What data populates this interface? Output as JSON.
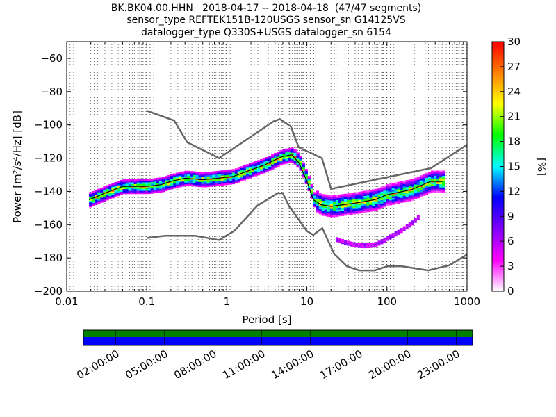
{
  "chart_data": [
    {
      "type": "heatmap",
      "title_lines": [
        "BK.BK04.00.HHN   2018-04-17 -- 2018-04-18  (47/47 segments)",
        "sensor_type REFTEK151B-120USGS sensor_sn G14125VS",
        "datalogger_type Q330S+USGS datalogger_sn 6154"
      ],
      "xlabel": "Period [s]",
      "ylabel": "Power [m²/s⁴/Hz] [dB]",
      "x_scale": "log",
      "xlim": [
        0.01,
        1000
      ],
      "ylim": [
        -200,
        -50
      ],
      "xticks": [
        0.01,
        0.1,
        1,
        10,
        100,
        1000
      ],
      "xtick_labels": [
        "0.01",
        "0.1",
        "1",
        "10",
        "100",
        "1000"
      ],
      "yticks": [
        -200,
        -180,
        -160,
        -140,
        -120,
        -100,
        -80,
        -60
      ],
      "ytick_labels": [
        "−200",
        "−180",
        "−160",
        "−140",
        "−120",
        "−100",
        "−80",
        "−60"
      ],
      "grid": "dotted vertical lines at period bins",
      "colorbar": {
        "label": "[%]",
        "range": [
          0,
          30
        ],
        "ticks": [
          0,
          3,
          6,
          9,
          12,
          15,
          18,
          21,
          24,
          27,
          30
        ],
        "colormap": [
          "#ffffff",
          "#ff00ff",
          "#8000ff",
          "#0000ff",
          "#00ffff",
          "#00ff00",
          "#ffff00",
          "#ff8000",
          "#ff0000"
        ]
      },
      "series": [
        {
          "name": "high-noise-model",
          "color": "#666666",
          "x": [
            0.1,
            0.22,
            0.32,
            0.8,
            3.8,
            4.6,
            6.3,
            7.9,
            15.4,
            20,
            354.8,
            1000
          ],
          "y": [
            -91.5,
            -97.4,
            -110.5,
            -120,
            -98,
            -96.5,
            -101,
            -113.5,
            -120,
            -138.5,
            -126,
            -112
          ]
        },
        {
          "name": "low-noise-model",
          "color": "#666666",
          "x": [
            0.1,
            0.17,
            0.4,
            0.8,
            1.24,
            2.4,
            4.3,
            5,
            6,
            10,
            12,
            15.6,
            21.9,
            31.6,
            45,
            70,
            101,
            154,
            328,
            600,
            1000
          ],
          "y": [
            -168,
            -166.7,
            -166.7,
            -169.2,
            -163.7,
            -148.6,
            -141.1,
            -141.1,
            -149,
            -163.8,
            -166.2,
            -162.1,
            -177.5,
            -185,
            -187.5,
            -187.5,
            -185,
            -185,
            -187.5,
            -184.4,
            -178
          ]
        },
        {
          "name": "mode",
          "color": "#000000",
          "x": [
            0.019,
            0.03,
            0.05,
            0.1,
            0.15,
            0.2,
            0.3,
            0.5,
            0.8,
            1.2,
            2,
            3,
            4,
            5,
            6.5,
            8,
            10,
            12,
            15,
            20,
            40,
            70,
            100,
            200,
            350,
            500
          ],
          "y": [
            -145,
            -141,
            -137,
            -137,
            -136,
            -134,
            -132,
            -133,
            -132,
            -131,
            -127,
            -124,
            -121,
            -119,
            -118,
            -123,
            -134,
            -145,
            -148,
            -149,
            -147,
            -145,
            -142,
            -139,
            -134,
            -134
          ]
        }
      ]
    },
    {
      "type": "timeline",
      "xtick_labels": [
        "02:00:00",
        "05:00:00",
        "08:00:00",
        "11:00:00",
        "14:00:00",
        "17:00:00",
        "20:00:00",
        "23:00:00"
      ],
      "xtick_hours": [
        2,
        5,
        8,
        11,
        14,
        17,
        20,
        23
      ],
      "xlim_hours": [
        0,
        24
      ],
      "bands": [
        {
          "name": "data-available",
          "color": "#008000"
        },
        {
          "name": "psd-computed",
          "color": "#0000ff"
        }
      ]
    }
  ]
}
